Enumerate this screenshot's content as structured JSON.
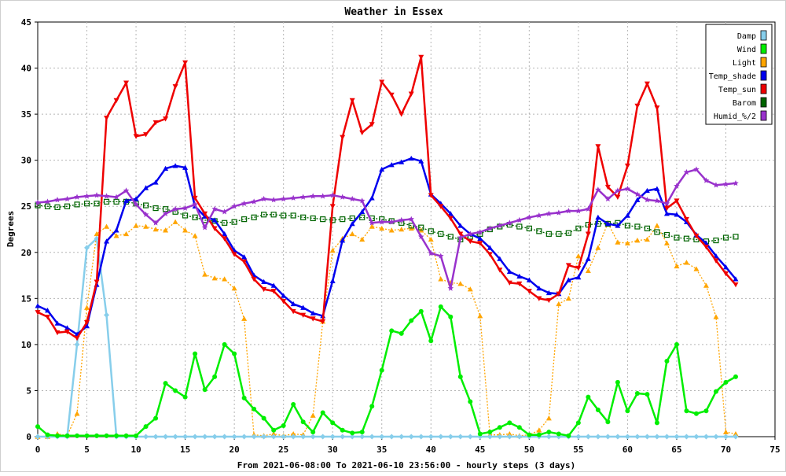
{
  "chart_data": {
    "type": "line",
    "title": "Weather in Essex",
    "xlabel": "From 2021-06-08:00 To 2021-06-10 23:56:00 - hourly steps (3 days)",
    "ylabel": "Degrees",
    "xlim": [
      0,
      75
    ],
    "ylim": [
      0,
      45
    ],
    "xticks": [
      0,
      5,
      10,
      15,
      20,
      25,
      30,
      35,
      40,
      45,
      50,
      55,
      60,
      65,
      70,
      75
    ],
    "yticks": [
      0,
      5,
      10,
      15,
      20,
      25,
      30,
      35,
      40,
      45
    ],
    "grid": true,
    "legend_position": "top-right",
    "x": [
      0,
      1,
      2,
      3,
      4,
      5,
      6,
      7,
      8,
      9,
      10,
      11,
      12,
      13,
      14,
      15,
      16,
      17,
      18,
      19,
      20,
      21,
      22,
      23,
      24,
      25,
      26,
      27,
      28,
      29,
      30,
      31,
      32,
      33,
      34,
      35,
      36,
      37,
      38,
      39,
      40,
      41,
      42,
      43,
      44,
      45,
      46,
      47,
      48,
      49,
      50,
      51,
      52,
      53,
      54,
      55,
      56,
      57,
      58,
      59,
      60,
      61,
      62,
      63,
      64,
      65,
      66,
      67,
      68,
      69,
      70,
      71
    ],
    "series": [
      {
        "name": "Damp",
        "color": "#87ceeb",
        "marker": "diamond",
        "values": [
          0,
          0,
          0,
          0,
          10,
          20.5,
          21.5,
          13.2,
          0,
          0,
          0,
          0,
          0,
          0,
          0,
          0,
          0,
          0,
          0,
          0,
          0,
          0,
          0,
          0,
          0,
          0,
          0,
          0,
          0,
          0,
          0,
          0,
          0,
          0,
          0,
          0,
          0,
          0,
          0,
          0,
          0,
          0,
          0,
          0,
          0,
          0,
          0,
          0,
          0,
          0,
          0,
          0,
          0,
          0,
          0,
          0,
          0,
          0,
          0,
          0,
          0,
          0,
          0,
          0,
          0,
          0,
          0,
          0,
          0,
          0,
          0,
          0
        ]
      },
      {
        "name": "Wind",
        "color": "#00ee00",
        "marker": "circle",
        "values": [
          1.1,
          0.2,
          0.1,
          0.1,
          0.1,
          0.1,
          0.1,
          0.1,
          0.1,
          0.1,
          0.1,
          1.1,
          2,
          5.8,
          5,
          4.3,
          9,
          5.1,
          6.5,
          10,
          9,
          4.2,
          3,
          2,
          0.7,
          1.2,
          3.5,
          1.6,
          0.5,
          2.6,
          1.5,
          0.7,
          0.4,
          0.5,
          3.3,
          7.2,
          11.5,
          11.2,
          12.6,
          13.6,
          10.4,
          14.1,
          13,
          6.5,
          3.8,
          0.3,
          0.5,
          1,
          1.5,
          1,
          0.2,
          0.2,
          0.5,
          0.3,
          0.1,
          1.5,
          4.3,
          2.9,
          1.6,
          5.9,
          2.8,
          4.7,
          4.6,
          1.5,
          8.2,
          10,
          2.8,
          2.5,
          2.8,
          4.9,
          5.9,
          6.5
        ]
      },
      {
        "name": "Light",
        "color": "#ffa500",
        "marker": "triangle-up",
        "values": [
          0,
          0,
          0.3,
          0.1,
          2.5,
          14,
          22,
          22.8,
          21.8,
          22,
          22.9,
          22.8,
          22.5,
          22.4,
          23.3,
          22.4,
          21.8,
          17.6,
          17.2,
          17.1,
          16.1,
          12.8,
          0.2,
          0.1,
          0.3,
          0.1,
          0.3,
          0.2,
          2.3,
          12.5,
          20.2,
          21.5,
          22,
          21.4,
          22.8,
          22.6,
          22.4,
          22.5,
          22.6,
          22.4,
          21.4,
          17.1,
          16.7,
          16.6,
          16,
          13.1,
          0.2,
          0.2,
          0.3,
          0.1,
          0.2,
          0.7,
          2,
          14.4,
          15,
          19.6,
          18,
          20.5,
          23.2,
          21.1,
          21,
          21.3,
          21.4,
          22.9,
          21,
          18.5,
          18.9,
          18.2,
          16.4,
          13,
          0.5,
          0.3
        ]
      },
      {
        "name": "Temp_shade",
        "color": "#0000ee",
        "marker": "triangle-up",
        "values": [
          14.2,
          13.7,
          12.3,
          11.8,
          11.1,
          12,
          16.5,
          21.2,
          22.4,
          25.6,
          25.8,
          27,
          27.6,
          29.1,
          29.4,
          29.2,
          25,
          23.9,
          23.5,
          22,
          20.2,
          19.5,
          17.5,
          16.8,
          16.4,
          15.3,
          14.4,
          14,
          13.4,
          13.1,
          16.9,
          21.3,
          23.1,
          24.4,
          25.9,
          29,
          29.5,
          29.8,
          30.2,
          29.9,
          26.3,
          25.3,
          24.2,
          22.9,
          22,
          21.5,
          20.5,
          19.3,
          17.9,
          17.4,
          17,
          16.1,
          15.6,
          15.5,
          17,
          17.3,
          19.3,
          23.8,
          23.1,
          22.9,
          24,
          25.7,
          26.7,
          26.9,
          24.2,
          24.1,
          23.3,
          21.9,
          21,
          19.6,
          18.4,
          17.1
        ]
      },
      {
        "name": "Temp_sun",
        "color": "#ee0000",
        "marker": "triangle-down",
        "values": [
          13.5,
          13,
          11.3,
          11.4,
          10.7,
          12.4,
          16.8,
          34.6,
          36.5,
          38.4,
          32.6,
          32.8,
          34.1,
          34.5,
          38,
          40.6,
          25.9,
          24.2,
          22.6,
          21.5,
          19.8,
          19,
          17.1,
          16,
          15.8,
          14.7,
          13.6,
          13.2,
          12.8,
          12.5,
          25,
          32.5,
          36.5,
          33,
          33.9,
          38.5,
          37.1,
          35,
          37.2,
          41.2,
          26.2,
          25,
          23.7,
          22,
          21.2,
          21,
          19.8,
          18.1,
          16.7,
          16.6,
          15.8,
          15,
          14.8,
          15.5,
          18.6,
          18.3,
          22,
          31.5,
          27.1,
          26,
          29.4,
          35.9,
          38.3,
          35.7,
          24.8,
          25.6,
          23.6,
          21.8,
          20.6,
          19.1,
          17.7,
          16.5
        ]
      },
      {
        "name": "Barom",
        "color": "#006400",
        "marker": "square",
        "values": [
          25.1,
          25,
          24.9,
          25,
          25.2,
          25.3,
          25.3,
          25.5,
          25.5,
          25.5,
          25.3,
          25.1,
          24.8,
          24.7,
          24.4,
          24,
          23.8,
          23.5,
          23.4,
          23.2,
          23.3,
          23.6,
          23.8,
          24.1,
          24.1,
          24,
          24,
          23.8,
          23.7,
          23.6,
          23.5,
          23.6,
          23.7,
          23.8,
          23.7,
          23.6,
          23.4,
          23.2,
          22.9,
          22.7,
          22.3,
          22,
          21.7,
          21.4,
          21.7,
          22,
          22.5,
          22.8,
          23,
          22.8,
          22.6,
          22.3,
          22,
          22,
          22.1,
          22.6,
          23,
          23.1,
          23.1,
          23.2,
          22.9,
          22.8,
          22.6,
          22.2,
          21.9,
          21.6,
          21.5,
          21.4,
          21.2,
          21.3,
          21.6,
          21.7
        ]
      },
      {
        "name": "Humid_%/2",
        "color": "#9932cc",
        "marker": "star",
        "values": [
          25.4,
          25.5,
          25.7,
          25.8,
          26,
          26.1,
          26.2,
          26.1,
          26,
          26.7,
          25.2,
          24.1,
          23.2,
          24.2,
          24.7,
          24.8,
          25.2,
          22.7,
          24.7,
          24.4,
          25,
          25.3,
          25.5,
          25.8,
          25.7,
          25.8,
          25.9,
          26,
          26.1,
          26.1,
          26.2,
          26,
          25.8,
          25.6,
          23.2,
          23.3,
          23.3,
          23.5,
          23.6,
          21.7,
          19.9,
          19.6,
          16.1,
          21.6,
          22,
          22.2,
          22.6,
          22.9,
          23.2,
          23.5,
          23.8,
          24,
          24.2,
          24.3,
          24.5,
          24.5,
          24.7,
          26.8,
          25.8,
          26.7,
          26.9,
          26.3,
          25.7,
          25.6,
          25.3,
          27.2,
          28.7,
          29,
          27.8,
          27.3,
          27.4,
          27.5
        ]
      }
    ]
  }
}
